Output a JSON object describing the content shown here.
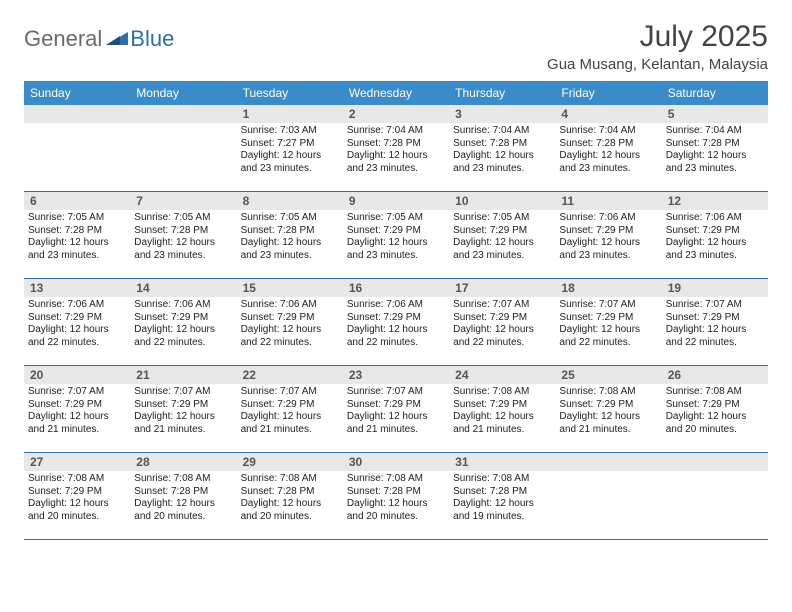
{
  "colors": {
    "header_bg": "#3b8bc8",
    "daynum_bg": "#e8e8e8",
    "row_border": "#2f6fa8",
    "logo_gray": "#6b6b6b",
    "logo_blue": "#2f6fa8",
    "title_gray": "#444444",
    "text": "#222222"
  },
  "fonts": {
    "month_title_size": 30,
    "location_size": 15,
    "weekday_size": 12,
    "daynum_size": 12,
    "info_size": 10
  },
  "logo": {
    "general": "General",
    "blue": "Blue"
  },
  "title": {
    "month": "July 2025",
    "location": "Gua Musang, Kelantan, Malaysia"
  },
  "weekdays": [
    "Sunday",
    "Monday",
    "Tuesday",
    "Wednesday",
    "Thursday",
    "Friday",
    "Saturday"
  ],
  "weeks": [
    [
      null,
      null,
      {
        "n": "1",
        "sr": "Sunrise: 7:03 AM",
        "ss": "Sunset: 7:27 PM",
        "dl": "Daylight: 12 hours and 23 minutes."
      },
      {
        "n": "2",
        "sr": "Sunrise: 7:04 AM",
        "ss": "Sunset: 7:28 PM",
        "dl": "Daylight: 12 hours and 23 minutes."
      },
      {
        "n": "3",
        "sr": "Sunrise: 7:04 AM",
        "ss": "Sunset: 7:28 PM",
        "dl": "Daylight: 12 hours and 23 minutes."
      },
      {
        "n": "4",
        "sr": "Sunrise: 7:04 AM",
        "ss": "Sunset: 7:28 PM",
        "dl": "Daylight: 12 hours and 23 minutes."
      },
      {
        "n": "5",
        "sr": "Sunrise: 7:04 AM",
        "ss": "Sunset: 7:28 PM",
        "dl": "Daylight: 12 hours and 23 minutes."
      }
    ],
    [
      {
        "n": "6",
        "sr": "Sunrise: 7:05 AM",
        "ss": "Sunset: 7:28 PM",
        "dl": "Daylight: 12 hours and 23 minutes."
      },
      {
        "n": "7",
        "sr": "Sunrise: 7:05 AM",
        "ss": "Sunset: 7:28 PM",
        "dl": "Daylight: 12 hours and 23 minutes."
      },
      {
        "n": "8",
        "sr": "Sunrise: 7:05 AM",
        "ss": "Sunset: 7:28 PM",
        "dl": "Daylight: 12 hours and 23 minutes."
      },
      {
        "n": "9",
        "sr": "Sunrise: 7:05 AM",
        "ss": "Sunset: 7:29 PM",
        "dl": "Daylight: 12 hours and 23 minutes."
      },
      {
        "n": "10",
        "sr": "Sunrise: 7:05 AM",
        "ss": "Sunset: 7:29 PM",
        "dl": "Daylight: 12 hours and 23 minutes."
      },
      {
        "n": "11",
        "sr": "Sunrise: 7:06 AM",
        "ss": "Sunset: 7:29 PM",
        "dl": "Daylight: 12 hours and 23 minutes."
      },
      {
        "n": "12",
        "sr": "Sunrise: 7:06 AM",
        "ss": "Sunset: 7:29 PM",
        "dl": "Daylight: 12 hours and 23 minutes."
      }
    ],
    [
      {
        "n": "13",
        "sr": "Sunrise: 7:06 AM",
        "ss": "Sunset: 7:29 PM",
        "dl": "Daylight: 12 hours and 22 minutes."
      },
      {
        "n": "14",
        "sr": "Sunrise: 7:06 AM",
        "ss": "Sunset: 7:29 PM",
        "dl": "Daylight: 12 hours and 22 minutes."
      },
      {
        "n": "15",
        "sr": "Sunrise: 7:06 AM",
        "ss": "Sunset: 7:29 PM",
        "dl": "Daylight: 12 hours and 22 minutes."
      },
      {
        "n": "16",
        "sr": "Sunrise: 7:06 AM",
        "ss": "Sunset: 7:29 PM",
        "dl": "Daylight: 12 hours and 22 minutes."
      },
      {
        "n": "17",
        "sr": "Sunrise: 7:07 AM",
        "ss": "Sunset: 7:29 PM",
        "dl": "Daylight: 12 hours and 22 minutes."
      },
      {
        "n": "18",
        "sr": "Sunrise: 7:07 AM",
        "ss": "Sunset: 7:29 PM",
        "dl": "Daylight: 12 hours and 22 minutes."
      },
      {
        "n": "19",
        "sr": "Sunrise: 7:07 AM",
        "ss": "Sunset: 7:29 PM",
        "dl": "Daylight: 12 hours and 22 minutes."
      }
    ],
    [
      {
        "n": "20",
        "sr": "Sunrise: 7:07 AM",
        "ss": "Sunset: 7:29 PM",
        "dl": "Daylight: 12 hours and 21 minutes."
      },
      {
        "n": "21",
        "sr": "Sunrise: 7:07 AM",
        "ss": "Sunset: 7:29 PM",
        "dl": "Daylight: 12 hours and 21 minutes."
      },
      {
        "n": "22",
        "sr": "Sunrise: 7:07 AM",
        "ss": "Sunset: 7:29 PM",
        "dl": "Daylight: 12 hours and 21 minutes."
      },
      {
        "n": "23",
        "sr": "Sunrise: 7:07 AM",
        "ss": "Sunset: 7:29 PM",
        "dl": "Daylight: 12 hours and 21 minutes."
      },
      {
        "n": "24",
        "sr": "Sunrise: 7:08 AM",
        "ss": "Sunset: 7:29 PM",
        "dl": "Daylight: 12 hours and 21 minutes."
      },
      {
        "n": "25",
        "sr": "Sunrise: 7:08 AM",
        "ss": "Sunset: 7:29 PM",
        "dl": "Daylight: 12 hours and 21 minutes."
      },
      {
        "n": "26",
        "sr": "Sunrise: 7:08 AM",
        "ss": "Sunset: 7:29 PM",
        "dl": "Daylight: 12 hours and 20 minutes."
      }
    ],
    [
      {
        "n": "27",
        "sr": "Sunrise: 7:08 AM",
        "ss": "Sunset: 7:29 PM",
        "dl": "Daylight: 12 hours and 20 minutes."
      },
      {
        "n": "28",
        "sr": "Sunrise: 7:08 AM",
        "ss": "Sunset: 7:28 PM",
        "dl": "Daylight: 12 hours and 20 minutes."
      },
      {
        "n": "29",
        "sr": "Sunrise: 7:08 AM",
        "ss": "Sunset: 7:28 PM",
        "dl": "Daylight: 12 hours and 20 minutes."
      },
      {
        "n": "30",
        "sr": "Sunrise: 7:08 AM",
        "ss": "Sunset: 7:28 PM",
        "dl": "Daylight: 12 hours and 20 minutes."
      },
      {
        "n": "31",
        "sr": "Sunrise: 7:08 AM",
        "ss": "Sunset: 7:28 PM",
        "dl": "Daylight: 12 hours and 19 minutes."
      },
      null,
      null
    ]
  ]
}
